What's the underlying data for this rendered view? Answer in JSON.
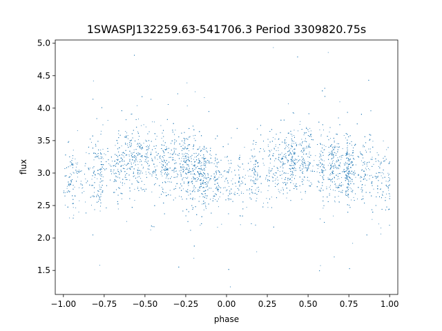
{
  "chart_data": {
    "type": "scatter",
    "title": "1SWASPJ132259.63-541706.3 Period 3309820.75s",
    "xlabel": "phase",
    "ylabel": "flux",
    "xlim": [
      -1.05,
      1.05
    ],
    "ylim": [
      1.13,
      5.05
    ],
    "x_ticks": [
      -1.0,
      -0.75,
      -0.5,
      -0.25,
      0.0,
      0.25,
      0.5,
      0.75,
      1.0
    ],
    "x_tick_labels": [
      "−1.00",
      "−0.75",
      "−0.50",
      "−0.25",
      "0.00",
      "0.25",
      "0.50",
      "0.75",
      "1.00"
    ],
    "y_ticks": [
      1.5,
      2.0,
      2.5,
      3.0,
      3.5,
      4.0,
      4.5,
      5.0
    ],
    "y_tick_labels": [
      "1.5",
      "2.0",
      "2.5",
      "3.0",
      "3.5",
      "4.0",
      "4.5",
      "5.0"
    ],
    "marker_color": "#1f77b4",
    "grid": false,
    "legend": "none",
    "phase_folded": true,
    "flux_profile": {
      "phase": [
        -1.0,
        -0.9,
        -0.8,
        -0.7,
        -0.6,
        -0.5,
        -0.4,
        -0.3,
        -0.2,
        -0.1,
        0.0,
        0.1,
        0.2,
        0.3,
        0.4,
        0.5,
        0.6,
        0.7,
        0.8,
        0.9,
        1.0
      ],
      "median_flux": [
        2.85,
        2.9,
        3.0,
        3.1,
        3.2,
        3.25,
        3.15,
        3.1,
        3.05,
        2.95,
        2.85,
        2.9,
        3.0,
        3.1,
        3.2,
        3.25,
        3.15,
        3.1,
        3.05,
        2.95,
        2.85
      ]
    }
  }
}
